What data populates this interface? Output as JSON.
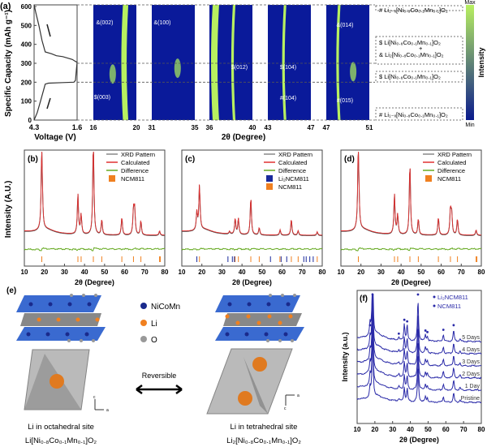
{
  "panel_labels": {
    "a": "(a)",
    "b": "(b)",
    "c": "(c)",
    "d": "(d)",
    "e": "(e)",
    "f": "(f)"
  },
  "chart_data": [
    {
      "id": "a-voltage",
      "type": "line",
      "xlabel": "Voltage (V)",
      "ylabel": "Specific Capacity (mAh g⁻¹)",
      "xlim": [
        4.3,
        1.6
      ],
      "ylim": [
        0,
        600
      ],
      "xticks": [
        "4.3",
        "1.6"
      ],
      "yticks": [
        "0",
        "100",
        "200",
        "300",
        "400",
        "500",
        "600"
      ],
      "x": [
        4.3,
        4.1,
        3.9,
        3.7,
        3.6,
        3.4,
        2.5,
        1.8,
        1.7,
        1.65,
        1.6,
        1.7,
        1.9,
        2.5,
        2.9,
        3.2,
        3.6,
        3.8,
        4.0,
        4.2,
        4.3
      ],
      "y": [
        0,
        40,
        100,
        160,
        190,
        195,
        198,
        200,
        210,
        260,
        305,
        310,
        320,
        335,
        340,
        350,
        360,
        420,
        500,
        570,
        610
      ],
      "dashed_levels": [
        0,
        200,
        300,
        610
      ]
    },
    {
      "id": "a-heatmaps",
      "type": "heatmap",
      "xlabel": "2θ (Degree)",
      "colorbar": {
        "label": "Intensity",
        "max": "Max",
        "min": "Min",
        "colors": [
          "#0a1a8c",
          "#b8f060"
        ]
      },
      "windows": [
        {
          "xlim": [
            16,
            20
          ],
          "ticks": [
            "16",
            "20"
          ],
          "annotations": [
            "&(002)",
            "$(003)"
          ]
        },
        {
          "xlim": [
            31,
            35
          ],
          "ticks": [
            "31",
            "35"
          ],
          "annotations": [
            "&(100)"
          ]
        },
        {
          "xlim": [
            36,
            40
          ],
          "ticks": [
            "36",
            "40"
          ],
          "annotations": [
            "$(012)"
          ]
        },
        {
          "xlim": [
            43,
            47
          ],
          "ticks": [
            "43",
            "47"
          ],
          "annotations": [
            "$(104)",
            "#(104)"
          ]
        },
        {
          "xlim": [
            47,
            51
          ],
          "ticks": [
            "47",
            "51"
          ],
          "annotations": [
            "&(014)",
            "#(015)"
          ]
        }
      ],
      "phase_labels": [
        "# Li₁₋ₓ[Ni₀.₈Co₀.₁Mn₀.₁]O₂",
        "$ Li[Ni₀.₈Co₀.₁Mn₀.₁]O₂",
        "+",
        "& Li₂[Ni₀.₈Co₀.₁Mn₀.₁]O₂",
        "$ Li[Ni₀.₈Co₀.₁Mn₀.₁]O₂",
        "# Li₁₋ₓ[Ni₀.₈Co₀.₁Mn₀.₁]O₂"
      ]
    },
    {
      "id": "b",
      "type": "line",
      "xlabel": "2θ (Degree)",
      "ylabel": "Intensity (A.U.)",
      "xlim": [
        10,
        80
      ],
      "xticks": [
        "10",
        "20",
        "30",
        "40",
        "50",
        "60",
        "70",
        "80"
      ],
      "legend": [
        "XRD Pattern",
        "Calculated",
        "Difference",
        "NCM811"
      ],
      "peaks": [
        [
          18.7,
          1.0
        ],
        [
          36.7,
          0.45
        ],
        [
          38.3,
          0.22
        ],
        [
          44.4,
          1.05
        ],
        [
          48.6,
          0.17
        ],
        [
          58.6,
          0.2
        ],
        [
          64.4,
          0.28
        ],
        [
          65.0,
          0.28
        ],
        [
          68.1,
          0.16
        ],
        [
          77.4,
          0.05
        ]
      ],
      "ticks_ncm811": [
        18.7,
        36.7,
        38.3,
        44.4,
        48.6,
        58.6,
        64.4,
        68.1,
        77.4,
        77.8
      ],
      "ticks_li2ncm811": []
    },
    {
      "id": "c",
      "type": "line",
      "xlabel": "2θ (Degree)",
      "ylabel": "",
      "xlim": [
        10,
        80
      ],
      "xticks": [
        "10",
        "20",
        "30",
        "40",
        "50",
        "60",
        "70",
        "80"
      ],
      "legend": [
        "XRD Pattern",
        "Calculated",
        "Difference",
        "Li₂NCM811",
        "NCM811"
      ],
      "peaks": [
        [
          17.5,
          0.2
        ],
        [
          18.8,
          0.5
        ],
        [
          33.8,
          0.03
        ],
        [
          36.6,
          0.18
        ],
        [
          38.2,
          0.18
        ],
        [
          44.4,
          0.42
        ],
        [
          48.6,
          0.08
        ],
        [
          59.0,
          0.06
        ],
        [
          64.6,
          0.18
        ],
        [
          68.0,
          0.05
        ],
        [
          77.5,
          0.04
        ]
      ],
      "ticks_ncm811": [
        18.8,
        36.6,
        38.2,
        44.4,
        48.6,
        58.9,
        64.6,
        68.0,
        77.5
      ],
      "ticks_li2ncm811": [
        17.5,
        33.0,
        35.2,
        36.2,
        54.2,
        59.5,
        62.3,
        70.8,
        72.0,
        73.8,
        75.5
      ]
    },
    {
      "id": "d",
      "type": "line",
      "xlabel": "2θ (Degree)",
      "ylabel": "",
      "xlim": [
        10,
        80
      ],
      "xticks": [
        "10",
        "20",
        "30",
        "40",
        "50",
        "60",
        "70",
        "80"
      ],
      "legend": [
        "XRD Pattern",
        "Calculated",
        "Difference",
        "NCM811"
      ],
      "peaks": [
        [
          18.7,
          1.05
        ],
        [
          36.7,
          0.45
        ],
        [
          38.3,
          0.22
        ],
        [
          44.4,
          0.8
        ],
        [
          48.6,
          0.18
        ],
        [
          58.6,
          0.2
        ],
        [
          64.6,
          0.28
        ],
        [
          65.2,
          0.24
        ],
        [
          68.1,
          0.18
        ],
        [
          77.4,
          0.06
        ]
      ],
      "ticks_ncm811": [
        18.7,
        36.7,
        38.3,
        44.4,
        48.6,
        58.6,
        64.6,
        68.1,
        77.4,
        77.8
      ],
      "ticks_li2ncm811": []
    },
    {
      "id": "f",
      "type": "line",
      "xlabel": "2θ (Degree)",
      "ylabel": "Intensity (a.u.)",
      "xlim": [
        10,
        80
      ],
      "xticks": [
        "10",
        "20",
        "30",
        "40",
        "50",
        "60",
        "70",
        "80"
      ],
      "legend": [
        "Li₂NCM811",
        "NCM811"
      ],
      "series": [
        {
          "name": "Pristine"
        },
        {
          "name": "1 Day"
        },
        {
          "name": "2 Days"
        },
        {
          "name": "3 Days"
        },
        {
          "name": "4 Days"
        },
        {
          "name": "5 Days"
        }
      ],
      "peaks": [
        [
          17.3,
          0.15
        ],
        [
          18.7,
          1.0
        ],
        [
          33.5,
          0.04
        ],
        [
          36.6,
          0.22
        ],
        [
          38.2,
          0.2
        ],
        [
          44.3,
          0.55
        ],
        [
          48.5,
          0.08
        ],
        [
          49.6,
          0.06
        ],
        [
          58.6,
          0.09
        ],
        [
          64.4,
          0.15
        ],
        [
          68.0,
          0.04
        ]
      ],
      "markers_li2ncm811": [
        17.3,
        33.5,
        36.6,
        49.6
      ],
      "markers_ncm811": [
        18.7,
        38.2,
        44.3,
        48.5,
        58.6,
        64.4
      ]
    }
  ],
  "panel_e": {
    "legend": [
      "NiCoMn",
      "Li",
      "O"
    ],
    "arrow_label": "Reversible",
    "left_caption": "Li in octahedral site",
    "left_formula": "Li[Ni₀.₈Co₀.₁Mn₀.₁]O₂",
    "right_caption": "Li in tetrahedral site",
    "right_formula": "Li₂[Ni₀.₈Co₀.₁Mn₀.₁]O₂",
    "axis_c": "c",
    "axis_a": "a",
    "colors": {
      "nicomn": "#1a2a8c",
      "li": "#f08020",
      "o": "#999999",
      "slab": "#3a6ad0"
    }
  },
  "colors": {
    "xrd": "#555555",
    "calc": "#e03030",
    "diff": "#66aa22",
    "ncm811": "#f08020",
    "li2ncm811": "#1a2a9c",
    "f_line": "#2a2aa8"
  }
}
